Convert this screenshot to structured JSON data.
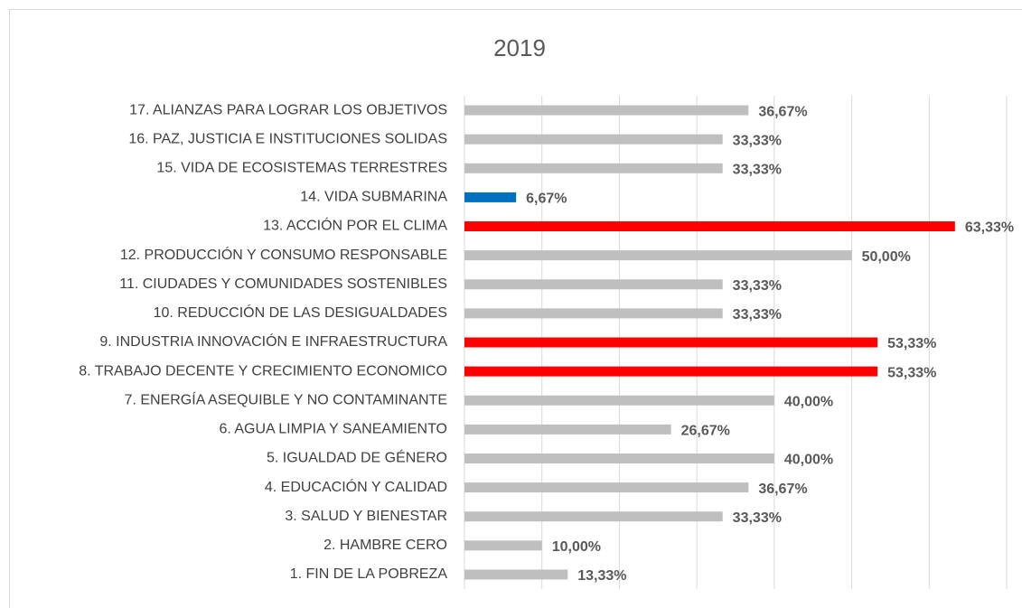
{
  "chart_data": {
    "type": "bar",
    "orientation": "horizontal",
    "title": "2019",
    "categories": [
      "1. FIN DE LA POBREZA",
      "2. HAMBRE CERO",
      "3. SALUD Y BIENESTAR",
      "4. EDUCACIÓN Y CALIDAD",
      "5. IGUALDAD DE GÉNERO",
      "6. AGUA LIMPIA Y SANEAMIENTO",
      "7. ENERGÍA ASEQUIBLE Y NO CONTAMINANTE",
      "8. TRABAJO DECENTE Y CRECIMIENTO ECONOMICO",
      "9. INDUSTRIA INNOVACIÓN E INFRAESTRUCTURA",
      "10. REDUCCIÓN DE LAS DESIGUALDADES",
      "11. CIUDADES Y COMUNIDADES SOSTENIBLES",
      "12. PRODUCCIÓN Y CONSUMO RESPONSABLE",
      "13. ACCIÓN POR EL CLIMA",
      "14. VIDA SUBMARINA",
      "15. VIDA DE ECOSISTEMAS TERRESTRES",
      "16. PAZ, JUSTICIA E INSTITUCIONES SOLIDAS",
      "17. ALIANZAS PARA LOGRAR LOS OBJETIVOS"
    ],
    "values": [
      13.33,
      10.0,
      33.33,
      36.67,
      40.0,
      26.67,
      40.0,
      53.33,
      53.33,
      33.33,
      33.33,
      50.0,
      63.33,
      6.67,
      33.33,
      33.33,
      36.67
    ],
    "value_labels": [
      "13,33%",
      "10,00%",
      "33,33%",
      "36,67%",
      "40,00%",
      "26,67%",
      "40,00%",
      "53,33%",
      "53,33%",
      "33,33%",
      "33,33%",
      "50,00%",
      "63,33%",
      "6,67%",
      "33,33%",
      "33,33%",
      "36,67%"
    ],
    "colors": [
      "#bfbfbf",
      "#bfbfbf",
      "#bfbfbf",
      "#bfbfbf",
      "#bfbfbf",
      "#bfbfbf",
      "#bfbfbf",
      "#ff0000",
      "#ff0000",
      "#bfbfbf",
      "#bfbfbf",
      "#bfbfbf",
      "#ff0000",
      "#0070c0",
      "#bfbfbf",
      "#bfbfbf",
      "#bfbfbf"
    ],
    "xlim": [
      0,
      70
    ],
    "xticks": [
      0,
      10,
      20,
      30,
      40,
      50,
      60,
      70
    ],
    "grid": true
  }
}
